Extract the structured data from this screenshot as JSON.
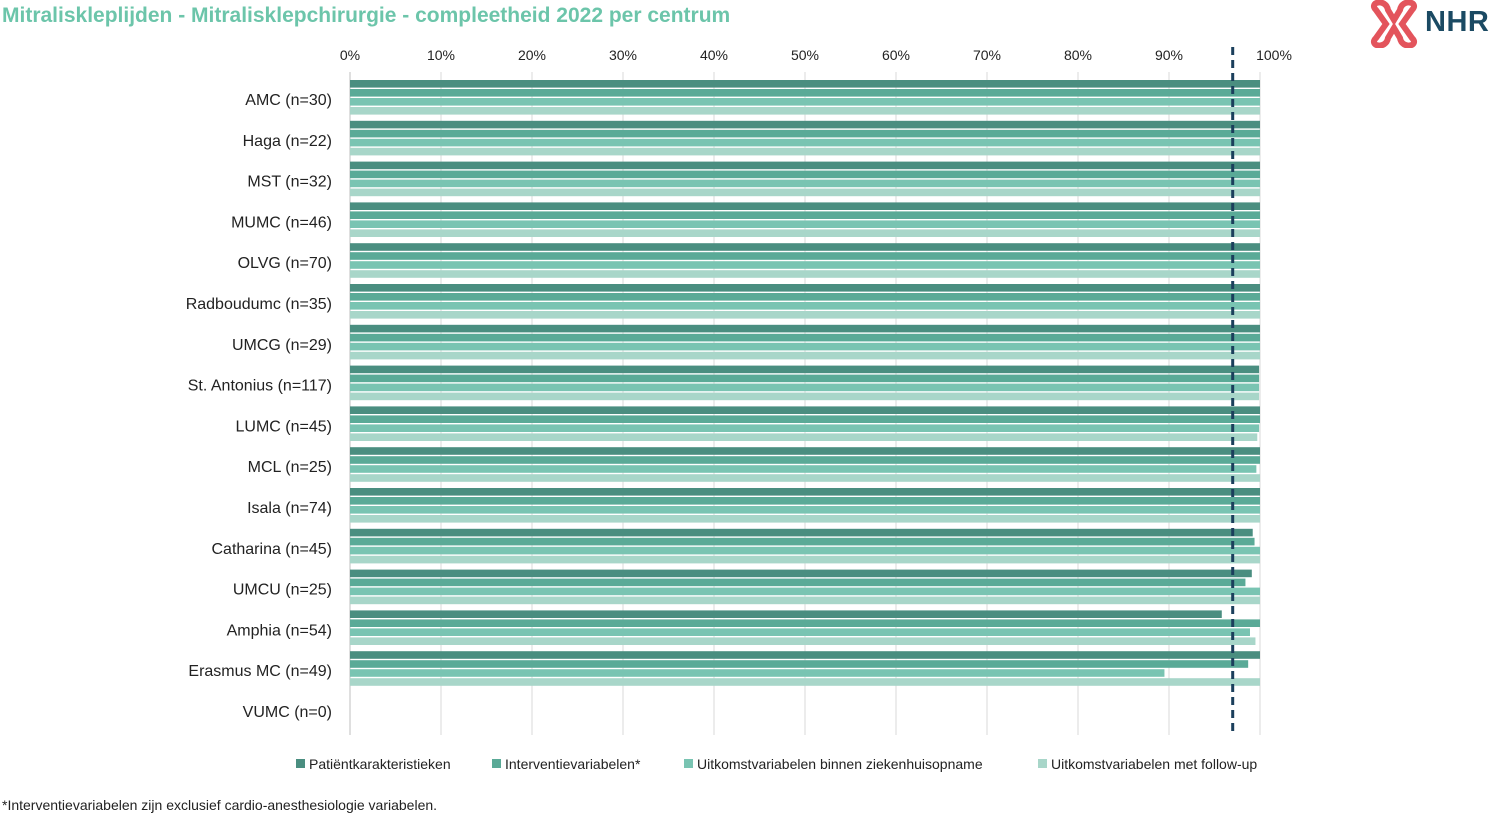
{
  "title": "Mitraliskleplijden - Mitralisklepchirurgie - compleetheid 2022 per centrum",
  "logo": {
    "text": "NHR"
  },
  "footnote": "*Interventievariabelen zijn exclusief cardio-anesthesiologie variabelen.",
  "colors": {
    "series": [
      "#4a8e80",
      "#5aaa97",
      "#79c4b2",
      "#a8d6c9"
    ],
    "threshold": "#1b3f5c",
    "grid": "#d9d9d9",
    "logo_mark": "#e3545c",
    "logo_text": "#1b4a63",
    "title": "#6cc5aa"
  },
  "chart_data": {
    "type": "bar",
    "orientation": "horizontal",
    "title": "Mitraliskleplijden - Mitralisklepchirurgie - compleetheid 2022 per centrum",
    "xlabel": "",
    "ylabel": "",
    "xlim": [
      0,
      100
    ],
    "x_ticks": [
      "0%",
      "10%",
      "20%",
      "30%",
      "40%",
      "50%",
      "60%",
      "70%",
      "80%",
      "90%",
      "100%"
    ],
    "threshold": 97,
    "legend_position": "bottom",
    "grid": true,
    "categories": [
      "AMC (n=30)",
      "Haga (n=22)",
      "MST (n=32)",
      "MUMC (n=46)",
      "OLVG (n=70)",
      "Radboudumc (n=35)",
      "UMCG (n=29)",
      "St. Antonius (n=117)",
      "LUMC (n=45)",
      "MCL (n=25)",
      "Isala (n=74)",
      "Catharina (n=45)",
      "UMCU (n=25)",
      "Amphia (n=54)",
      "Erasmus MC (n=49)",
      "VUMC (n=0)"
    ],
    "series": [
      {
        "name": "Patiëntkarakteristieken",
        "values": [
          100,
          100,
          100,
          100,
          100,
          100,
          100,
          99.9,
          100,
          100,
          100,
          99.2,
          99.1,
          95.8,
          100,
          null
        ]
      },
      {
        "name": "Interventievariabelen*",
        "values": [
          100,
          100,
          100,
          100,
          100,
          100,
          100,
          99.9,
          100,
          100,
          100,
          99.4,
          98.4,
          100,
          98.7,
          null
        ]
      },
      {
        "name": "Uitkomstvariabelen binnen ziekenhuisopname",
        "values": [
          100,
          100,
          100,
          100,
          100,
          100,
          100,
          99.9,
          99.9,
          99.6,
          100,
          100,
          100,
          98.9,
          89.5,
          null
        ]
      },
      {
        "name": "Uitkomstvariabelen met follow-up",
        "values": [
          100,
          100,
          100,
          100,
          100,
          100,
          100,
          99.9,
          99.7,
          100,
          100,
          100,
          100,
          99.5,
          100,
          null
        ]
      }
    ]
  }
}
